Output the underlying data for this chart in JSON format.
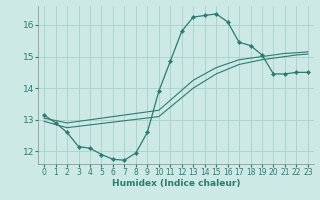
{
  "xlabel": "Humidex (Indice chaleur)",
  "ylabel": "",
  "background_color": "#cce9e6",
  "line_color": "#2d7b6e",
  "grid_color": "#aacfcc",
  "xlim": [
    -0.5,
    23.5
  ],
  "ylim": [
    11.6,
    16.6
  ],
  "yticks": [
    12,
    13,
    14,
    15,
    16
  ],
  "xticks": [
    0,
    1,
    2,
    3,
    4,
    5,
    6,
    7,
    8,
    9,
    10,
    11,
    12,
    13,
    14,
    15,
    16,
    17,
    18,
    19,
    20,
    21,
    22,
    23
  ],
  "curve1_x": [
    0,
    1,
    2,
    3,
    4,
    5,
    6,
    7,
    8,
    9,
    10,
    11,
    12,
    13,
    14,
    15,
    16,
    17,
    18,
    19,
    20,
    21,
    22,
    23
  ],
  "curve1_y": [
    13.15,
    12.9,
    12.6,
    12.15,
    12.1,
    11.9,
    11.75,
    11.72,
    11.95,
    12.6,
    13.9,
    14.85,
    15.8,
    16.25,
    16.3,
    16.35,
    16.1,
    15.45,
    15.35,
    15.05,
    14.45,
    14.45,
    14.5,
    14.5
  ],
  "curve2_x": [
    0,
    2,
    10,
    13,
    15,
    17,
    19,
    20,
    21,
    22,
    23
  ],
  "curve2_y": [
    13.05,
    12.9,
    13.3,
    14.25,
    14.65,
    14.9,
    15.0,
    15.05,
    15.1,
    15.12,
    15.15
  ],
  "curve3_x": [
    0,
    2,
    10,
    13,
    15,
    17,
    19,
    20,
    21,
    22,
    23
  ],
  "curve3_y": [
    12.95,
    12.75,
    13.1,
    14.0,
    14.45,
    14.75,
    14.9,
    14.95,
    15.0,
    15.05,
    15.08
  ]
}
